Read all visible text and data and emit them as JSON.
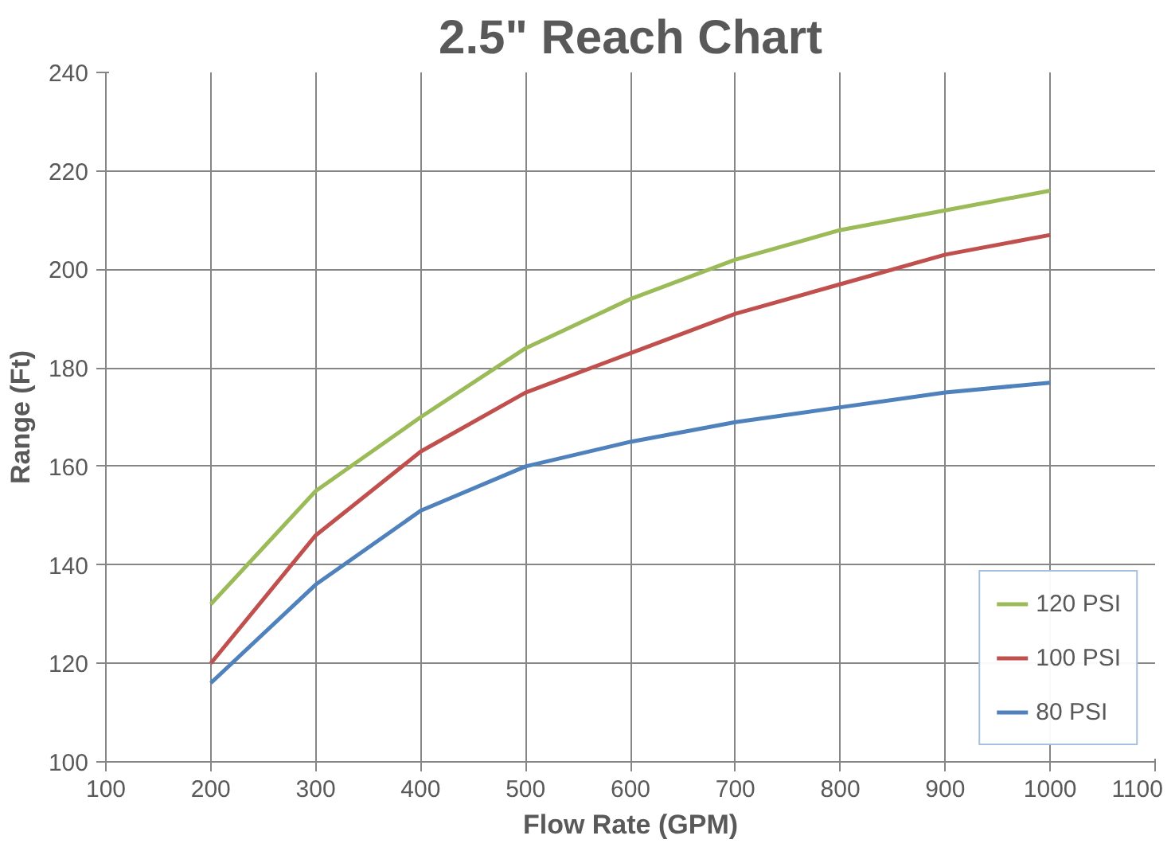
{
  "chart_data": {
    "type": "line",
    "title": "2.5\" Reach Chart",
    "xlabel": "Flow Rate (GPM)",
    "ylabel": "Range (Ft)",
    "x": [
      200,
      300,
      400,
      500,
      600,
      700,
      800,
      900,
      1000
    ],
    "series": [
      {
        "name": "120 PSI",
        "color": "#9bbb59",
        "values": [
          132,
          155,
          170,
          184,
          194,
          202,
          208,
          212,
          216
        ]
      },
      {
        "name": "100 PSI",
        "color": "#c0504d",
        "values": [
          120,
          146,
          163,
          175,
          183,
          191,
          197,
          203,
          207
        ]
      },
      {
        "name": "80 PSI",
        "color": "#4f81bd",
        "values": [
          116,
          136,
          151,
          160,
          165,
          169,
          172,
          175,
          177
        ]
      }
    ],
    "xlim": [
      100,
      1100
    ],
    "xticks": [
      100,
      200,
      300,
      400,
      500,
      600,
      700,
      800,
      900,
      1000,
      1100
    ],
    "ylim": [
      100,
      240
    ],
    "yticks": [
      100,
      120,
      140,
      160,
      180,
      200,
      220,
      240
    ],
    "grid": true,
    "legend": "bottom right",
    "marker": "none",
    "line_style": "solid"
  }
}
